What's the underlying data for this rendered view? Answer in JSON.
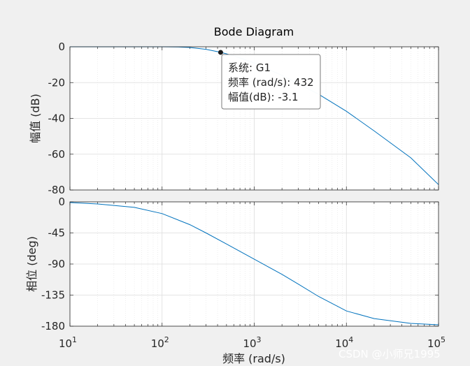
{
  "title": "Bode Diagram",
  "xlabel": "频率  (rad/s)",
  "watermark": "CSDN @小师兄1995",
  "x_tick_labels": [
    {
      "base": "10",
      "exp": "1"
    },
    {
      "base": "10",
      "exp": "2"
    },
    {
      "base": "10",
      "exp": "3"
    },
    {
      "base": "10",
      "exp": "4"
    },
    {
      "base": "10",
      "exp": "5"
    }
  ],
  "datatip": {
    "line1": "系统: G1",
    "line2": "频率 (rad/s): 432",
    "line3": "幅值(dB): -3.1"
  },
  "colors": {
    "line": "#0072bd",
    "axes_bg": "#ffffff",
    "figure_bg": "#f0f0f0",
    "grid": "#dcdcdc"
  },
  "chart_data": [
    {
      "type": "line",
      "panel": "magnitude",
      "ylabel": "幅值 (dB)",
      "xscale": "log",
      "xlim": [
        10,
        100000
      ],
      "ylim": [
        -80,
        0
      ],
      "yticks": [
        0,
        -20,
        -40,
        -60,
        -80
      ],
      "y_tick_labels": [
        "0",
        "-20",
        "-40",
        "-60",
        "-80"
      ],
      "grid": true,
      "series": [
        {
          "x": [
            10,
            20,
            50,
            100,
            150,
            200,
            300,
            432,
            600,
            1000,
            2000,
            5000,
            10000,
            20000,
            50000,
            100000
          ],
          "values": [
            0,
            0,
            0,
            0,
            -0.1,
            -0.4,
            -1.4,
            -3.1,
            -5.0,
            -9.0,
            -16.0,
            -26.5,
            -36.0,
            -47.0,
            -62.0,
            -77.0
          ]
        }
      ],
      "datatip_point": {
        "x": 432,
        "y": -3.1
      }
    },
    {
      "type": "line",
      "panel": "phase",
      "ylabel": "相位 (deg)",
      "xscale": "log",
      "xlim": [
        10,
        100000
      ],
      "ylim": [
        -180,
        0
      ],
      "yticks": [
        0,
        -45,
        -90,
        -135,
        -180
      ],
      "y_tick_labels": [
        "0",
        "-45",
        "-90",
        "-135",
        "-180"
      ],
      "grid": true,
      "series": [
        {
          "x": [
            10,
            20,
            50,
            100,
            200,
            300,
            500,
            1000,
            2000,
            3000,
            5000,
            10000,
            20000,
            50000,
            100000
          ],
          "values": [
            -1,
            -3,
            -8,
            -17,
            -33,
            -45,
            -61,
            -83,
            -105,
            -119,
            -137,
            -158,
            -169,
            -176,
            -178
          ]
        }
      ]
    }
  ]
}
